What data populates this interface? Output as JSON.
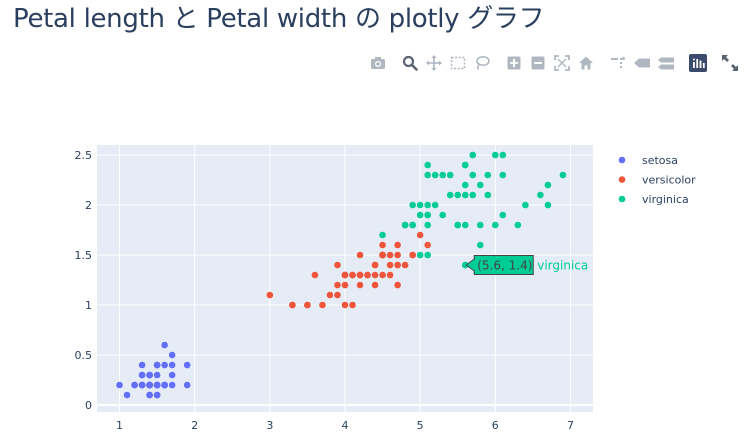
{
  "page": {
    "title": "Petal length と Petal width の plotly グラフ"
  },
  "modebar": {
    "buttons": [
      {
        "name": "camera-icon",
        "label": "Download plot as a png"
      },
      {
        "name": "zoom-icon",
        "label": "Zoom"
      },
      {
        "name": "pan-icon",
        "label": "Pan"
      },
      {
        "name": "box-select-icon",
        "label": "Box Select"
      },
      {
        "name": "lasso-select-icon",
        "label": "Lasso Select"
      },
      {
        "name": "zoom-in-icon",
        "label": "Zoom in"
      },
      {
        "name": "zoom-out-icon",
        "label": "Zoom out"
      },
      {
        "name": "autoscale-icon",
        "label": "Autoscale"
      },
      {
        "name": "home-icon",
        "label": "Reset axes"
      },
      {
        "name": "spike-lines-icon",
        "label": "Toggle Spike Lines"
      },
      {
        "name": "hover-closest-icon",
        "label": "Show closest data on hover"
      },
      {
        "name": "hover-compare-icon",
        "label": "Compare data on hover"
      },
      {
        "name": "plotly-logo-icon",
        "label": "Produced with Plotly"
      },
      {
        "name": "fullscreen-icon",
        "label": "Expand"
      }
    ]
  },
  "colors": {
    "setosa": "#636efa",
    "versicolor": "#EF553B",
    "virginica": "#00cc96",
    "plot_bg": "#E5ECF6",
    "text": "#2a3f5f"
  },
  "chart_data": {
    "type": "scatter",
    "xlim": [
      0.7,
      7.3
    ],
    "ylim": [
      -0.07,
      2.6
    ],
    "x_ticks": [
      1,
      2,
      3,
      4,
      5,
      6,
      7
    ],
    "y_ticks": [
      0,
      0.5,
      1,
      1.5,
      2,
      2.5
    ],
    "grid": true,
    "legend": "right",
    "series": [
      {
        "name": "setosa",
        "color": "#636efa",
        "points": [
          [
            1.4,
            0.2
          ],
          [
            1.4,
            0.2
          ],
          [
            1.3,
            0.2
          ],
          [
            1.5,
            0.2
          ],
          [
            1.4,
            0.2
          ],
          [
            1.7,
            0.4
          ],
          [
            1.4,
            0.3
          ],
          [
            1.5,
            0.2
          ],
          [
            1.4,
            0.2
          ],
          [
            1.5,
            0.1
          ],
          [
            1.5,
            0.2
          ],
          [
            1.6,
            0.2
          ],
          [
            1.4,
            0.1
          ],
          [
            1.1,
            0.1
          ],
          [
            1.2,
            0.2
          ],
          [
            1.5,
            0.4
          ],
          [
            1.3,
            0.4
          ],
          [
            1.4,
            0.3
          ],
          [
            1.7,
            0.3
          ],
          [
            1.5,
            0.3
          ],
          [
            1.7,
            0.2
          ],
          [
            1.5,
            0.4
          ],
          [
            1.0,
            0.2
          ],
          [
            1.7,
            0.5
          ],
          [
            1.9,
            0.2
          ],
          [
            1.6,
            0.2
          ],
          [
            1.6,
            0.4
          ],
          [
            1.5,
            0.2
          ],
          [
            1.4,
            0.2
          ],
          [
            1.6,
            0.2
          ],
          [
            1.6,
            0.2
          ],
          [
            1.5,
            0.4
          ],
          [
            1.5,
            0.1
          ],
          [
            1.4,
            0.2
          ],
          [
            1.5,
            0.2
          ],
          [
            1.2,
            0.2
          ],
          [
            1.3,
            0.2
          ],
          [
            1.4,
            0.1
          ],
          [
            1.3,
            0.2
          ],
          [
            1.5,
            0.2
          ],
          [
            1.3,
            0.3
          ],
          [
            1.3,
            0.3
          ],
          [
            1.3,
            0.2
          ],
          [
            1.6,
            0.6
          ],
          [
            1.9,
            0.4
          ],
          [
            1.4,
            0.3
          ],
          [
            1.6,
            0.2
          ],
          [
            1.4,
            0.2
          ],
          [
            1.5,
            0.2
          ],
          [
            1.4,
            0.2
          ]
        ]
      },
      {
        "name": "versicolor",
        "color": "#EF553B",
        "points": [
          [
            4.7,
            1.4
          ],
          [
            4.5,
            1.5
          ],
          [
            4.9,
            1.5
          ],
          [
            4.0,
            1.3
          ],
          [
            4.6,
            1.5
          ],
          [
            4.5,
            1.3
          ],
          [
            4.7,
            1.6
          ],
          [
            3.3,
            1.0
          ],
          [
            4.6,
            1.3
          ],
          [
            3.9,
            1.4
          ],
          [
            3.5,
            1.0
          ],
          [
            4.2,
            1.5
          ],
          [
            4.0,
            1.0
          ],
          [
            4.7,
            1.4
          ],
          [
            3.6,
            1.3
          ],
          [
            4.4,
            1.4
          ],
          [
            4.5,
            1.5
          ],
          [
            4.1,
            1.0
          ],
          [
            4.5,
            1.5
          ],
          [
            3.9,
            1.1
          ],
          [
            4.8,
            1.8
          ],
          [
            4.0,
            1.3
          ],
          [
            4.9,
            1.5
          ],
          [
            4.7,
            1.2
          ],
          [
            4.3,
            1.3
          ],
          [
            4.4,
            1.4
          ],
          [
            4.8,
            1.4
          ],
          [
            5.0,
            1.7
          ],
          [
            4.5,
            1.5
          ],
          [
            3.5,
            1.0
          ],
          [
            3.8,
            1.1
          ],
          [
            3.7,
            1.0
          ],
          [
            3.9,
            1.2
          ],
          [
            5.1,
            1.6
          ],
          [
            4.5,
            1.5
          ],
          [
            4.5,
            1.6
          ],
          [
            4.7,
            1.5
          ],
          [
            4.4,
            1.3
          ],
          [
            4.1,
            1.3
          ],
          [
            4.0,
            1.3
          ],
          [
            4.4,
            1.2
          ],
          [
            4.6,
            1.4
          ],
          [
            4.0,
            1.2
          ],
          [
            3.3,
            1.0
          ],
          [
            4.2,
            1.3
          ],
          [
            4.2,
            1.2
          ],
          [
            4.2,
            1.3
          ],
          [
            4.3,
            1.3
          ],
          [
            3.0,
            1.1
          ],
          [
            4.1,
            1.3
          ]
        ]
      },
      {
        "name": "virginica",
        "color": "#00cc96",
        "points": [
          [
            6.0,
            2.5
          ],
          [
            5.1,
            1.9
          ],
          [
            5.9,
            2.1
          ],
          [
            5.6,
            1.8
          ],
          [
            5.8,
            2.2
          ],
          [
            6.6,
            2.1
          ],
          [
            4.5,
            1.7
          ],
          [
            6.3,
            1.8
          ],
          [
            5.8,
            1.8
          ],
          [
            6.1,
            2.5
          ],
          [
            5.1,
            2.0
          ],
          [
            5.3,
            1.9
          ],
          [
            5.5,
            2.1
          ],
          [
            5.0,
            2.0
          ],
          [
            5.1,
            2.4
          ],
          [
            5.3,
            2.3
          ],
          [
            5.5,
            1.8
          ],
          [
            6.7,
            2.2
          ],
          [
            6.9,
            2.3
          ],
          [
            5.0,
            1.5
          ],
          [
            5.7,
            2.3
          ],
          [
            4.9,
            2.0
          ],
          [
            6.7,
            2.0
          ],
          [
            4.9,
            1.8
          ],
          [
            5.7,
            2.1
          ],
          [
            6.0,
            1.8
          ],
          [
            4.8,
            1.8
          ],
          [
            4.9,
            1.8
          ],
          [
            5.6,
            2.1
          ],
          [
            5.8,
            1.6
          ],
          [
            6.1,
            1.9
          ],
          [
            6.4,
            2.0
          ],
          [
            5.6,
            2.2
          ],
          [
            5.1,
            1.5
          ],
          [
            5.6,
            1.4
          ],
          [
            6.1,
            2.3
          ],
          [
            5.6,
            2.4
          ],
          [
            5.5,
            1.8
          ],
          [
            4.8,
            1.8
          ],
          [
            5.4,
            2.1
          ],
          [
            5.6,
            2.4
          ],
          [
            5.1,
            2.3
          ],
          [
            5.1,
            1.9
          ],
          [
            5.9,
            2.3
          ],
          [
            5.7,
            2.5
          ],
          [
            5.2,
            2.3
          ],
          [
            5.0,
            1.9
          ],
          [
            5.2,
            2.0
          ],
          [
            5.4,
            2.3
          ],
          [
            5.1,
            1.8
          ]
        ]
      }
    ],
    "hover": {
      "x": 5.6,
      "y": 1.4,
      "text": "(5.6, 1.4)",
      "series": "virginica"
    }
  }
}
